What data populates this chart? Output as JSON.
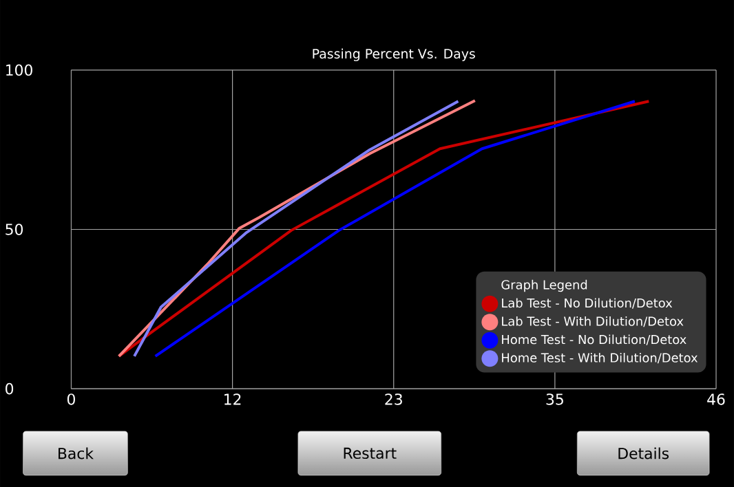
{
  "chart_data": {
    "type": "line",
    "title": "Passing Percent Vs. Days",
    "legend_title": "Graph Legend",
    "xlim": [
      0,
      46
    ],
    "ylim": [
      0,
      100
    ],
    "xticks": [
      0,
      {
        "value": 11.5,
        "label": "12"
      },
      23,
      {
        "value": 34.5,
        "label": "35"
      },
      46
    ],
    "yticks": [
      0,
      50,
      100
    ],
    "grid": true,
    "legend": "bottom right",
    "marker": "none",
    "line_style": "solid",
    "series": [
      {
        "name": "Lab Test - No Dilution/Detox",
        "color": "#cc0000",
        "x": [
          3.4,
          5.9,
          15.7,
          26.3,
          41.2
        ],
        "values": [
          10.2,
          18.3,
          49.7,
          75.3,
          90.2
        ]
      },
      {
        "name": "Lab Test - With Dilution/Detox",
        "color": "#ff8080",
        "x": [
          3.4,
          9.7,
          12.0,
          13.4,
          21.3,
          28.8
        ],
        "values": [
          10.2,
          39.0,
          50.4,
          53.7,
          73.8,
          90.4
        ]
      },
      {
        "name": "Home Test - No Dilution/Detox",
        "color": "#0000ff",
        "x": [
          6.0,
          19.1,
          29.3,
          40.2
        ],
        "values": [
          10.2,
          49.7,
          75.3,
          90.2
        ]
      },
      {
        "name": "Home Test - With Dilution/Detox",
        "color": "#8080ff",
        "x": [
          4.5,
          6.4,
          12.5,
          21.3,
          27.6
        ],
        "values": [
          10.2,
          25.6,
          49.0,
          75.0,
          90.2
        ]
      }
    ],
    "annotations": [
      "Back",
      "Restart",
      "Details"
    ]
  }
}
